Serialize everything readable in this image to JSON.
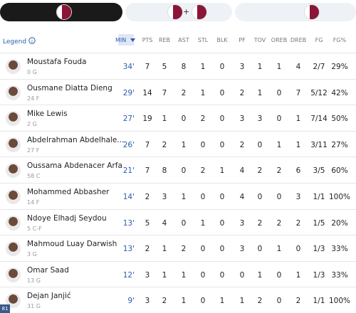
{
  "top_bar": {
    "separator": "+"
  },
  "legend": "Legend",
  "columns": [
    "MIN",
    "PTS",
    "REB",
    "AST",
    "STL",
    "BLK",
    "PF",
    "TOV",
    "OREB",
    "DREB",
    "FG",
    "FG%"
  ],
  "rows": [
    {
      "name": "Moustafa Fouda",
      "info": "0 G",
      "stats": [
        "34'",
        7,
        5,
        8,
        1,
        0,
        3,
        1,
        1,
        4,
        "2/7",
        "29%"
      ]
    },
    {
      "name": "Ousmane Diatta Dieng",
      "info": "24 F",
      "stats": [
        "29'",
        14,
        7,
        2,
        1,
        0,
        2,
        1,
        0,
        7,
        "5/12",
        "42%"
      ]
    },
    {
      "name": "Mike Lewis",
      "info": "2 G",
      "stats": [
        "27'",
        19,
        1,
        0,
        2,
        0,
        3,
        3,
        0,
        1,
        "7/14",
        "50%"
      ]
    },
    {
      "name": "Abdelrahman Abdelhale...",
      "info": "27 F",
      "stats": [
        "26'",
        7,
        2,
        1,
        0,
        0,
        2,
        0,
        1,
        1,
        "3/11",
        "27%"
      ]
    },
    {
      "name": "Oussama Abdenacer Arfa",
      "info": "58 C",
      "stats": [
        "21'",
        7,
        8,
        0,
        2,
        1,
        4,
        2,
        2,
        6,
        "3/5",
        "60%"
      ]
    },
    {
      "name": "Mohammed Abbasher",
      "info": "14 F",
      "stats": [
        "14'",
        2,
        3,
        1,
        0,
        0,
        4,
        0,
        0,
        3,
        "1/1",
        "100%"
      ]
    },
    {
      "name": "Ndoye Elhadj Seydou",
      "info": "5 C-F",
      "stats": [
        "13'",
        5,
        4,
        0,
        1,
        0,
        3,
        2,
        2,
        2,
        "1/5",
        "20%"
      ]
    },
    {
      "name": "Mahmoud Luay Darwish",
      "info": "3 G",
      "stats": [
        "13'",
        2,
        1,
        2,
        0,
        0,
        3,
        0,
        1,
        0,
        "1/3",
        "33%"
      ]
    },
    {
      "name": "Omar Saad",
      "info": "13 G",
      "stats": [
        "12'",
        3,
        1,
        1,
        0,
        0,
        0,
        1,
        0,
        1,
        "1/3",
        "33%"
      ]
    },
    {
      "name": "Dejan Janjić",
      "info": "31 G",
      "stats": [
        "9'",
        3,
        2,
        1,
        0,
        1,
        1,
        2,
        0,
        2,
        "1/1",
        "100%"
      ]
    }
  ],
  "corner_badge": "81"
}
